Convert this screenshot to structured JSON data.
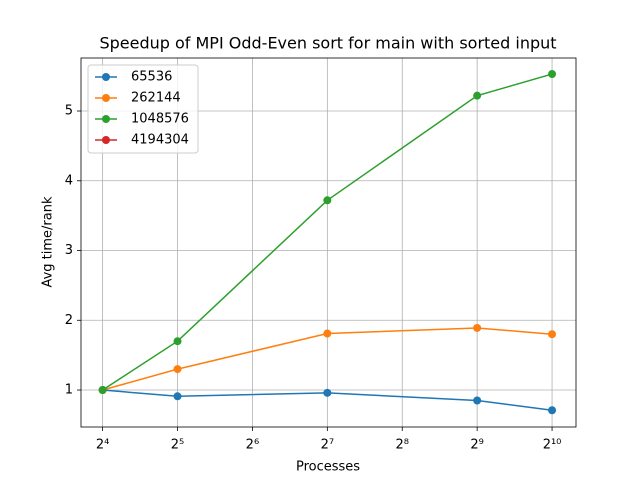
{
  "chart_data": {
    "type": "line",
    "title": "Speedup of MPI Odd-Even sort for main with sorted input",
    "x_label": "Processes",
    "y_label": "Avg time/rank",
    "x": [
      16,
      32,
      128,
      512,
      1024
    ],
    "xscale": "log",
    "xbase": 2,
    "xlim": [
      13.1,
      1278
    ],
    "xticks": [
      {
        "value": 16,
        "label": "2⁴"
      },
      {
        "value": 32,
        "label": "2⁵"
      },
      {
        "value": 64,
        "label": "2⁶"
      },
      {
        "value": 128,
        "label": "2⁷"
      },
      {
        "value": 256,
        "label": "2⁸"
      },
      {
        "value": 512,
        "label": "2⁹"
      },
      {
        "value": 1024,
        "label": "2¹⁰"
      }
    ],
    "ylim": [
      0.47,
      5.76
    ],
    "yticks": [
      1,
      2,
      3,
      4,
      5
    ],
    "grid": true,
    "legend": "upper left",
    "series": [
      {
        "name": "65536",
        "color": "#1f77b4",
        "values": [
          1.0,
          0.91,
          0.96,
          0.85,
          0.71
        ]
      },
      {
        "name": "262144",
        "color": "#ff7f0e",
        "values": [
          1.0,
          1.3,
          1.81,
          1.89,
          1.8
        ]
      },
      {
        "name": "1048576",
        "color": "#2ca02c",
        "values": [
          1.0,
          1.7,
          3.72,
          5.22,
          5.53
        ]
      },
      {
        "name": "4194304",
        "color": "#d62728",
        "values": [
          null,
          null,
          null,
          null,
          null
        ]
      }
    ]
  }
}
